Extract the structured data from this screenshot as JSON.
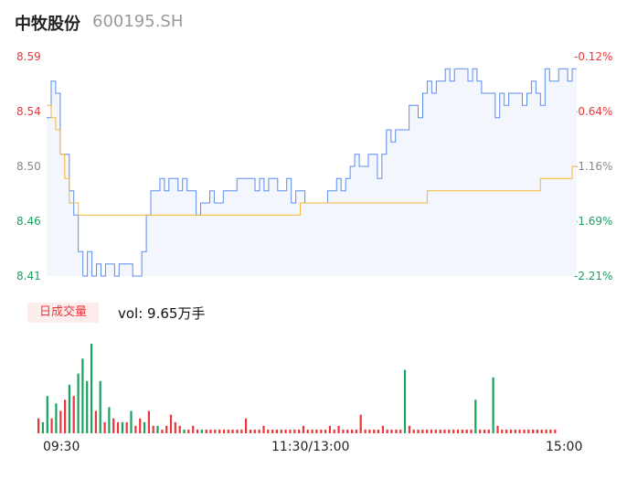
{
  "header": {
    "name": "中牧股份",
    "code": "600195.SH"
  },
  "volume_tab": {
    "label": "日成交量",
    "vol_text": "vol: 9.65万手"
  },
  "colors": {
    "price_line": "#5b8def",
    "avg_line": "#f5b731",
    "up": "#e8383d",
    "down": "#1aa260",
    "area": "#f4f6fd"
  },
  "chart_data": [
    {
      "type": "line",
      "title": "",
      "y_left_ticks": [
        "8.59",
        "8.54",
        "8.50",
        "8.46",
        "8.41"
      ],
      "y_right_ticks": [
        "-0.12%",
        "-0.64%",
        "-1.16%",
        "-1.69%",
        "-2.21%"
      ],
      "ylim": [
        8.41,
        8.59
      ],
      "x_ticks": [
        "09:30",
        "11:30/13:00",
        "15:00"
      ],
      "series": [
        {
          "values": [
            8.54,
            8.57,
            8.56,
            8.51,
            8.51,
            8.48,
            8.46,
            8.43,
            8.41,
            8.43,
            8.41,
            8.42,
            8.41,
            8.42,
            8.42,
            8.41,
            8.42,
            8.42,
            8.42,
            8.41,
            8.41,
            8.43,
            8.46,
            8.48,
            8.48,
            8.49,
            8.48,
            8.49,
            8.49,
            8.48,
            8.49,
            8.48,
            8.48,
            8.46,
            8.47,
            8.47,
            8.48,
            8.47,
            8.47,
            8.48,
            8.48,
            8.48,
            8.49,
            8.49,
            8.49,
            8.49,
            8.48,
            8.49,
            8.48,
            8.49,
            8.49,
            8.48,
            8.48,
            8.49,
            8.47,
            8.48,
            8.48,
            8.47,
            8.47,
            8.47,
            8.47,
            8.47,
            8.48,
            8.48,
            8.49,
            8.48,
            8.49,
            8.5,
            8.51,
            8.5,
            8.5,
            8.51,
            8.51,
            8.49,
            8.51,
            8.53,
            8.52,
            8.53,
            8.53,
            8.53,
            8.55,
            8.55,
            8.54,
            8.56,
            8.57,
            8.56,
            8.57,
            8.57,
            8.58,
            8.57,
            8.58,
            8.58,
            8.58,
            8.57,
            8.58,
            8.57,
            8.56,
            8.56,
            8.56,
            8.54,
            8.56,
            8.55,
            8.56,
            8.56,
            8.56,
            8.55,
            8.56,
            8.57,
            8.56,
            8.55,
            8.58,
            8.57,
            8.57,
            8.58,
            8.58,
            8.57,
            8.58,
            8.58
          ]
        },
        {
          "values": [
            8.55,
            8.54,
            8.53,
            8.51,
            8.49,
            8.47,
            8.47,
            8.46,
            8.46,
            8.46,
            8.46,
            8.46,
            8.46,
            8.46,
            8.46,
            8.46,
            8.46,
            8.46,
            8.46,
            8.46,
            8.46,
            8.46,
            8.46,
            8.46,
            8.46,
            8.46,
            8.46,
            8.46,
            8.46,
            8.46,
            8.46,
            8.46,
            8.46,
            8.46,
            8.46,
            8.46,
            8.46,
            8.46,
            8.46,
            8.46,
            8.46,
            8.46,
            8.46,
            8.46,
            8.46,
            8.46,
            8.46,
            8.46,
            8.46,
            8.46,
            8.46,
            8.46,
            8.46,
            8.46,
            8.46,
            8.46,
            8.47,
            8.47,
            8.47,
            8.47,
            8.47,
            8.47,
            8.47,
            8.47,
            8.47,
            8.47,
            8.47,
            8.47,
            8.47,
            8.47,
            8.47,
            8.47,
            8.47,
            8.47,
            8.47,
            8.47,
            8.47,
            8.47,
            8.47,
            8.47,
            8.47,
            8.47,
            8.47,
            8.47,
            8.48,
            8.48,
            8.48,
            8.48,
            8.48,
            8.48,
            8.48,
            8.48,
            8.48,
            8.48,
            8.48,
            8.48,
            8.48,
            8.48,
            8.48,
            8.48,
            8.48,
            8.48,
            8.48,
            8.48,
            8.48,
            8.48,
            8.48,
            8.48,
            8.48,
            8.49,
            8.49,
            8.49,
            8.49,
            8.49,
            8.49,
            8.49,
            8.5,
            8.5
          ]
        }
      ]
    },
    {
      "type": "bar",
      "title": "",
      "values": [
        4,
        3,
        10,
        4,
        8,
        6,
        9,
        13,
        10,
        16,
        20,
        14,
        24,
        6,
        14,
        3,
        7,
        4,
        3,
        3,
        3,
        6,
        2,
        4,
        3,
        6,
        2,
        2,
        1,
        2,
        5,
        3,
        2,
        1,
        1,
        2,
        1,
        1,
        1,
        1,
        1,
        1,
        1,
        1,
        1,
        1,
        1,
        4,
        1,
        1,
        1,
        2,
        1,
        1,
        1,
        1,
        1,
        1,
        1,
        1,
        2,
        1,
        1,
        1,
        1,
        1,
        2,
        1,
        2,
        1,
        1,
        1,
        1,
        5,
        1,
        1,
        1,
        1,
        2,
        1,
        1,
        1,
        1,
        17,
        2,
        1,
        1,
        1,
        1,
        1,
        1,
        1,
        1,
        1,
        1,
        1,
        1,
        1,
        1,
        9,
        1,
        1,
        1,
        15,
        2,
        1,
        1,
        1,
        1,
        1,
        1,
        1,
        1,
        1,
        1,
        1,
        1,
        1
      ],
      "up": [
        true,
        false,
        false,
        true,
        false,
        true,
        true,
        false,
        true,
        false,
        false,
        false,
        false,
        true,
        false,
        true,
        false,
        true,
        true,
        false,
        true,
        false,
        true,
        true,
        false,
        true,
        true,
        false,
        true,
        true,
        true,
        true,
        true,
        false,
        true,
        true,
        true,
        false,
        true,
        true,
        true,
        true,
        true,
        true,
        true,
        true,
        true,
        true,
        true,
        true,
        true,
        true,
        true,
        true,
        true,
        true,
        true,
        true,
        true,
        true,
        true,
        true,
        true,
        true,
        true,
        true,
        true,
        true,
        true,
        true,
        true,
        true,
        true,
        true,
        true,
        true,
        true,
        true,
        true,
        true,
        true,
        true,
        true,
        false,
        true,
        true,
        true,
        true,
        true,
        true,
        true,
        true,
        true,
        true,
        true,
        true,
        true,
        true,
        true,
        false,
        true,
        true,
        true,
        false,
        true,
        true,
        true,
        true,
        true,
        true,
        true,
        true,
        true,
        true,
        true,
        true,
        true,
        true
      ]
    }
  ]
}
